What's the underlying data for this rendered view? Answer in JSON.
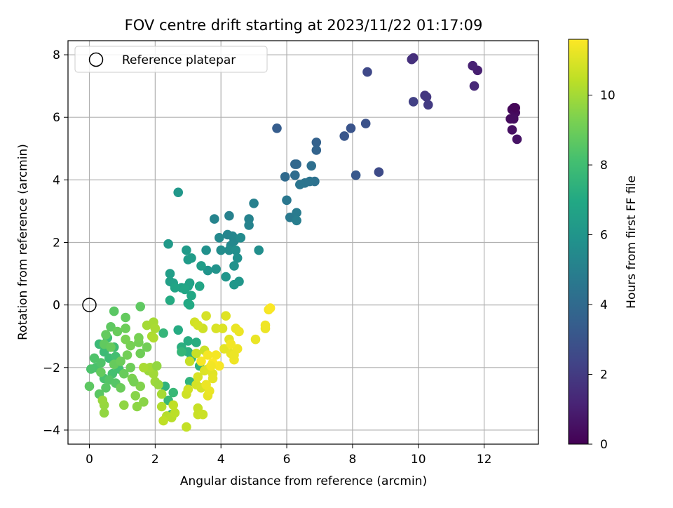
{
  "chart_data": {
    "type": "scatter",
    "title": "FOV centre drift starting at 2023/11/22 01:17:09",
    "xlabel": "Angular distance from reference (arcmin)",
    "ylabel": "Rotation from reference (arcmin)",
    "xlim": [
      -0.65,
      13.65
    ],
    "ylim": [
      -4.45,
      8.45
    ],
    "xticks": [
      "0",
      "2",
      "4",
      "6",
      "8",
      "10",
      "12"
    ],
    "yticks": [
      "−4",
      "−2",
      "0",
      "2",
      "4",
      "6",
      "8"
    ],
    "grid": true,
    "legend": {
      "position": "top-left",
      "entries": [
        "Reference platepar"
      ]
    },
    "reference_point": {
      "x": 0,
      "y": 0
    },
    "colorbar": {
      "label": "Hours from first FF file",
      "range": [
        0,
        11.6
      ],
      "ticks": [
        "0",
        "2",
        "4",
        "6",
        "8",
        "10"
      ],
      "colormap": "viridis",
      "colors": [
        "#440154",
        "#482475",
        "#414487",
        "#355f8d",
        "#2a788e",
        "#21918c",
        "#22a884",
        "#44bf70",
        "#7ad151",
        "#bddf26",
        "#fde725"
      ]
    },
    "series": [
      {
        "points": [
          [
            12.9,
            6.3,
            0.1
          ],
          [
            12.85,
            6.25,
            0.2
          ],
          [
            12.95,
            6.15,
            0.3
          ],
          [
            12.8,
            5.95,
            0.35
          ],
          [
            12.9,
            5.95,
            0.4
          ],
          [
            12.85,
            5.6,
            0.5
          ],
          [
            13.0,
            5.3,
            0.6
          ],
          [
            12.95,
            6.3,
            0.15
          ],
          [
            11.8,
            7.5,
            1.0
          ],
          [
            11.65,
            7.65,
            1.1
          ],
          [
            11.7,
            7.0,
            1.3
          ],
          [
            9.85,
            7.9,
            1.5
          ],
          [
            9.8,
            7.85,
            1.6
          ],
          [
            10.2,
            6.7,
            1.8
          ],
          [
            10.25,
            6.65,
            1.9
          ],
          [
            10.3,
            6.4,
            2.0
          ],
          [
            9.85,
            6.5,
            2.2
          ],
          [
            8.45,
            7.45,
            2.5
          ],
          [
            8.8,
            4.25,
            2.6
          ],
          [
            8.4,
            5.8,
            2.9
          ],
          [
            7.95,
            5.65,
            3.0
          ],
          [
            7.75,
            5.4,
            3.1
          ],
          [
            8.1,
            4.15,
            3.2
          ],
          [
            5.7,
            5.65,
            3.4
          ],
          [
            6.9,
            5.2,
            3.6
          ],
          [
            6.9,
            4.95,
            3.7
          ],
          [
            6.25,
            4.5,
            3.8
          ],
          [
            6.3,
            4.5,
            3.85
          ],
          [
            5.95,
            4.1,
            4.0
          ],
          [
            6.25,
            4.15,
            4.1
          ],
          [
            6.75,
            4.45,
            4.2
          ],
          [
            6.85,
            3.95,
            4.3
          ],
          [
            6.7,
            3.95,
            4.4
          ],
          [
            6.55,
            3.9,
            4.45
          ],
          [
            6.4,
            3.85,
            4.5
          ],
          [
            6.0,
            3.35,
            4.6
          ],
          [
            6.1,
            2.8,
            4.7
          ],
          [
            6.3,
            2.95,
            4.8
          ],
          [
            6.3,
            2.7,
            4.9
          ],
          [
            5.0,
            3.25,
            5.0
          ],
          [
            4.25,
            2.85,
            5.05
          ],
          [
            4.85,
            2.75,
            5.1
          ],
          [
            4.85,
            2.55,
            5.15
          ],
          [
            3.8,
            2.75,
            5.2
          ],
          [
            4.2,
            2.25,
            5.25
          ],
          [
            4.35,
            2.2,
            5.3
          ],
          [
            4.4,
            2.05,
            5.35
          ],
          [
            4.3,
            1.9,
            5.4
          ],
          [
            3.95,
            2.15,
            5.45
          ],
          [
            4.6,
            2.15,
            5.5
          ],
          [
            4.25,
            1.75,
            5.55
          ],
          [
            4.0,
            1.75,
            5.6
          ],
          [
            5.15,
            1.75,
            5.65
          ],
          [
            4.45,
            1.75,
            5.7
          ],
          [
            4.5,
            1.5,
            5.75
          ],
          [
            3.55,
            1.75,
            5.8
          ],
          [
            4.4,
            1.25,
            5.85
          ],
          [
            3.85,
            1.15,
            5.9
          ],
          [
            3.6,
            1.1,
            5.95
          ],
          [
            4.15,
            0.9,
            6.0
          ],
          [
            4.55,
            0.75,
            6.05
          ],
          [
            4.4,
            0.65,
            6.1
          ],
          [
            2.7,
            3.6,
            6.1
          ],
          [
            2.4,
            1.95,
            6.2
          ],
          [
            2.95,
            1.75,
            6.25
          ],
          [
            3.0,
            1.45,
            6.3
          ],
          [
            3.1,
            1.5,
            6.35
          ],
          [
            3.4,
            1.25,
            6.4
          ],
          [
            2.45,
            1.0,
            6.45
          ],
          [
            2.45,
            0.75,
            6.5
          ],
          [
            2.55,
            0.7,
            6.55
          ],
          [
            3.05,
            0.7,
            6.6
          ],
          [
            3.0,
            0.6,
            6.65
          ],
          [
            2.8,
            0.55,
            6.7
          ],
          [
            2.6,
            0.55,
            6.75
          ],
          [
            3.35,
            0.6,
            6.8
          ],
          [
            2.9,
            0.5,
            6.85
          ],
          [
            3.1,
            0.3,
            6.9
          ],
          [
            3.0,
            0.05,
            6.95
          ],
          [
            3.05,
            0.0,
            7.0
          ],
          [
            2.45,
            0.15,
            7.05
          ],
          [
            2.7,
            -0.8,
            7.1
          ],
          [
            3.0,
            -1.15,
            7.15
          ],
          [
            3.25,
            -1.2,
            7.2
          ],
          [
            2.8,
            -1.35,
            7.25
          ],
          [
            3.0,
            -1.5,
            7.3
          ],
          [
            3.1,
            -1.7,
            7.35
          ],
          [
            3.35,
            -1.95,
            7.4
          ],
          [
            2.3,
            -2.6,
            7.45
          ],
          [
            3.05,
            -2.45,
            7.5
          ],
          [
            2.5,
            -3.5,
            7.55
          ],
          [
            2.25,
            -0.9,
            7.6
          ],
          [
            2.8,
            -1.5,
            7.65
          ],
          [
            2.55,
            -2.8,
            7.7
          ],
          [
            2.4,
            -3.05,
            7.75
          ],
          [
            0.3,
            -1.25,
            7.8
          ],
          [
            0.45,
            -1.5,
            7.85
          ],
          [
            0.6,
            -1.7,
            7.9
          ],
          [
            0.75,
            -1.35,
            7.95
          ],
          [
            0.55,
            -1.05,
            8.0
          ],
          [
            0.8,
            -1.65,
            8.05
          ],
          [
            0.9,
            -2.05,
            8.1
          ],
          [
            0.7,
            -2.2,
            8.15
          ],
          [
            0.45,
            -2.35,
            8.2
          ],
          [
            0.2,
            -2.0,
            8.25
          ],
          [
            0.05,
            -2.05,
            8.3
          ],
          [
            0.15,
            -1.7,
            8.35
          ],
          [
            0.35,
            -1.85,
            8.4
          ],
          [
            0.6,
            -2.4,
            8.45
          ],
          [
            0.8,
            -2.5,
            8.5
          ],
          [
            0.5,
            -2.65,
            8.55
          ],
          [
            0.3,
            -2.85,
            8.6
          ],
          [
            0.0,
            -2.6,
            8.65
          ],
          [
            0.65,
            -0.7,
            8.7
          ],
          [
            0.45,
            -1.25,
            8.75
          ],
          [
            0.35,
            -2.15,
            8.8
          ],
          [
            0.75,
            -1.9,
            8.85
          ],
          [
            1.05,
            -2.2,
            8.9
          ],
          [
            0.95,
            -2.65,
            8.95
          ],
          [
            1.25,
            -2.0,
            9.0
          ],
          [
            1.55,
            -1.55,
            9.05
          ],
          [
            1.75,
            -1.35,
            9.1
          ],
          [
            1.5,
            -1.2,
            9.15
          ],
          [
            1.25,
            -1.3,
            9.2
          ],
          [
            1.1,
            -1.1,
            9.25
          ],
          [
            0.75,
            -0.2,
            8.6
          ],
          [
            1.55,
            -0.05,
            8.7
          ],
          [
            1.1,
            -0.4,
            8.8
          ],
          [
            0.85,
            -0.85,
            8.9
          ],
          [
            1.1,
            -0.75,
            9.0
          ],
          [
            1.15,
            -1.6,
            9.1
          ],
          [
            1.5,
            -1.05,
            9.2
          ],
          [
            1.3,
            -2.35,
            9.3
          ],
          [
            1.55,
            -2.6,
            9.4
          ],
          [
            1.4,
            -2.9,
            9.5
          ],
          [
            1.65,
            -3.1,
            9.55
          ],
          [
            1.45,
            -3.25,
            9.6
          ],
          [
            1.05,
            -3.2,
            9.65
          ],
          [
            0.45,
            -3.45,
            9.7
          ],
          [
            0.45,
            -3.2,
            9.75
          ],
          [
            0.4,
            -3.05,
            9.8
          ],
          [
            1.8,
            -2.1,
            9.85
          ],
          [
            2.0,
            -2.45,
            9.9
          ],
          [
            1.95,
            -2.2,
            9.95
          ],
          [
            1.85,
            -2.0,
            10.0
          ],
          [
            2.2,
            -2.85,
            10.05
          ],
          [
            1.65,
            -2.0,
            10.1
          ],
          [
            1.75,
            -0.65,
            10.0
          ],
          [
            1.95,
            -0.55,
            10.05
          ],
          [
            2.0,
            -0.75,
            10.1
          ],
          [
            1.9,
            -1.0,
            10.15
          ],
          [
            1.95,
            -1.05,
            10.2
          ],
          [
            2.2,
            -3.25,
            10.25
          ],
          [
            2.35,
            -3.55,
            10.3
          ],
          [
            2.5,
            -3.6,
            10.35
          ],
          [
            2.6,
            -3.45,
            10.4
          ],
          [
            2.25,
            -3.7,
            10.45
          ],
          [
            2.55,
            -3.2,
            10.5
          ],
          [
            2.95,
            -3.9,
            10.55
          ],
          [
            3.3,
            -3.3,
            10.6
          ],
          [
            3.3,
            -3.5,
            10.65
          ],
          [
            3.45,
            -3.5,
            10.7
          ],
          [
            2.95,
            -2.85,
            10.75
          ],
          [
            3.0,
            -2.7,
            10.8
          ],
          [
            3.25,
            -2.55,
            10.85
          ],
          [
            3.4,
            -2.65,
            10.9
          ],
          [
            3.3,
            -2.3,
            10.95
          ],
          [
            3.5,
            -2.1,
            11.0
          ],
          [
            3.6,
            -2.05,
            11.05
          ],
          [
            3.75,
            -2.2,
            11.1
          ],
          [
            3.75,
            -2.35,
            11.15
          ],
          [
            3.6,
            -2.9,
            11.2
          ],
          [
            3.65,
            -2.75,
            11.25
          ],
          [
            3.55,
            -2.55,
            11.3
          ],
          [
            3.05,
            -1.8,
            10.6
          ],
          [
            3.25,
            -1.55,
            10.65
          ],
          [
            3.5,
            -1.45,
            10.7
          ],
          [
            3.45,
            -0.75,
            10.75
          ],
          [
            3.2,
            -0.55,
            10.8
          ],
          [
            3.3,
            -0.65,
            10.85
          ],
          [
            3.55,
            -0.35,
            10.9
          ],
          [
            3.85,
            -0.75,
            10.95
          ],
          [
            4.05,
            -0.75,
            11.0
          ],
          [
            4.15,
            -0.35,
            11.05
          ],
          [
            4.25,
            -1.1,
            11.1
          ],
          [
            4.1,
            -1.4,
            11.15
          ],
          [
            4.3,
            -1.55,
            11.2
          ],
          [
            4.45,
            -0.75,
            11.25
          ],
          [
            4.55,
            -0.85,
            11.3
          ],
          [
            4.5,
            -1.4,
            11.35
          ],
          [
            4.3,
            -1.25,
            11.4
          ],
          [
            3.85,
            -1.6,
            11.45
          ],
          [
            3.95,
            -1.95,
            11.5
          ],
          [
            3.75,
            -1.85,
            11.55
          ],
          [
            3.4,
            -1.8,
            11.5
          ],
          [
            3.6,
            -1.6,
            11.45
          ],
          [
            3.7,
            -1.95,
            11.4
          ],
          [
            4.4,
            -1.75,
            11.35
          ],
          [
            4.4,
            -1.6,
            11.3
          ],
          [
            5.05,
            -1.1,
            11.25
          ],
          [
            5.35,
            -0.75,
            11.3
          ],
          [
            5.35,
            -0.65,
            11.35
          ],
          [
            5.45,
            -0.15,
            11.45
          ],
          [
            5.5,
            -0.1,
            11.55
          ],
          [
            0.5,
            -0.95,
            8.8
          ],
          [
            0.65,
            -1.35,
            8.85
          ],
          [
            1.35,
            -2.45,
            9.2
          ],
          [
            0.95,
            -1.8,
            8.95
          ],
          [
            2.05,
            -1.95,
            9.7
          ],
          [
            2.1,
            -2.55,
            9.8
          ]
        ]
      }
    ]
  }
}
